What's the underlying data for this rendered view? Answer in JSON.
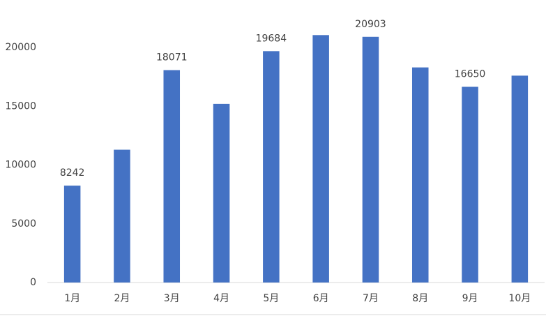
{
  "chart_data": {
    "type": "bar",
    "categories": [
      "1月",
      "2月",
      "3月",
      "4月",
      "5月",
      "6月",
      "7月",
      "8月",
      "9月",
      "10月"
    ],
    "values": [
      8242,
      11300,
      18071,
      15200,
      19684,
      21050,
      20903,
      18300,
      16650,
      17600
    ],
    "value_labels": [
      "8242",
      null,
      "18071",
      null,
      "19684",
      null,
      "20903",
      null,
      "16650",
      null
    ],
    "color": "#4472c4",
    "ylim": [
      0,
      22000
    ],
    "yticks": [
      0,
      5000,
      10000,
      15000,
      20000
    ],
    "grid": false
  }
}
